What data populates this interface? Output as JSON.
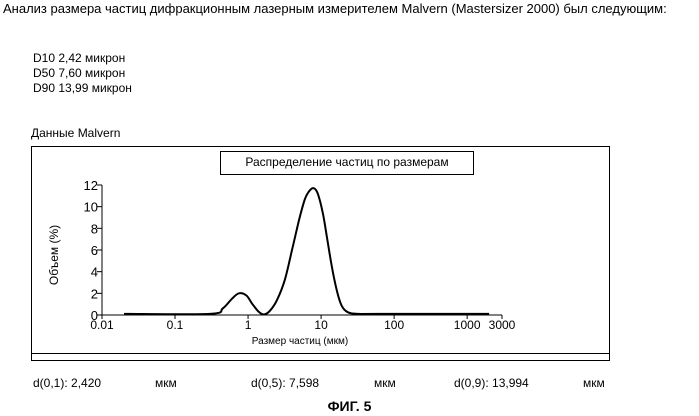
{
  "intro": "Анализ размера частиц дифракционным лазерным измерителем Malvern (Mastersizer 2000) был следующим:",
  "d_values": [
    "D10 2,42 микрон",
    "D50 7,60 микрон",
    "D90 13,99 микрон"
  ],
  "malvern_caption": "Данные Malvern",
  "stats": {
    "d01_label": "d(0,1): 2,420",
    "d05_label": "d(0,5): 7,598",
    "d09_label": "d(0,9): 13,994",
    "unit": "мкм"
  },
  "figure_caption": "ФИГ. 5",
  "chart_data": {
    "type": "line",
    "title": "Распределение частиц по размерам",
    "xlabel": "Размер частиц (мкм)",
    "ylabel": "Объем (%)",
    "x_scale": "log",
    "xlim": [
      0.01,
      3000
    ],
    "ylim": [
      0,
      12
    ],
    "x_ticks": [
      0.01,
      0.1,
      1,
      10,
      100,
      1000,
      3000
    ],
    "x_tick_labels": [
      "0.01",
      "0.1",
      "1",
      "10",
      "100",
      "1000",
      "3000"
    ],
    "y_ticks": [
      0,
      2,
      4,
      6,
      8,
      10,
      12
    ],
    "y_tick_labels": [
      "0",
      "2",
      "4",
      "6",
      "8",
      "10",
      "12"
    ],
    "grid": false,
    "series": [
      {
        "x": [
          0.02,
          0.3,
          0.45,
          0.6,
          0.75,
          0.95,
          1.15,
          1.4,
          1.65,
          2.0,
          2.5,
          3.2,
          4.0,
          5.0,
          6.0,
          7.0,
          8.0,
          9.0,
          10.5,
          12.0,
          14.0,
          16.5,
          19.0,
          22.0,
          26.0,
          32.0,
          60.0,
          2000.0
        ],
        "y": [
          0.1,
          0.1,
          0.6,
          1.5,
          2.0,
          1.8,
          1.0,
          0.3,
          0.05,
          0.4,
          1.4,
          3.3,
          6.0,
          8.8,
          10.7,
          11.5,
          11.7,
          11.2,
          9.5,
          7.2,
          4.5,
          2.2,
          0.9,
          0.35,
          0.15,
          0.1,
          0.1,
          0.1
        ]
      }
    ]
  }
}
